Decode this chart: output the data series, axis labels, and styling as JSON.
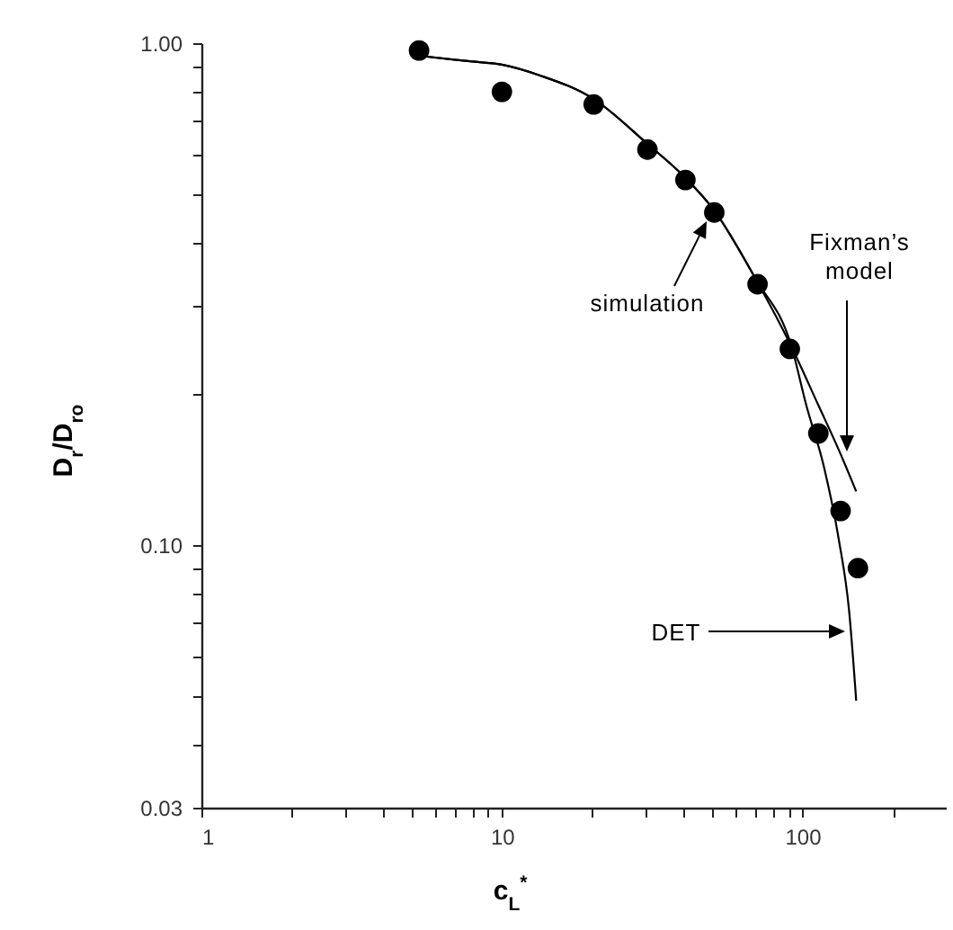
{
  "chart_data": {
    "type": "scatter",
    "xlabel": "c$_{L}$$^{*}$",
    "ylabel": "D$_{r}$/D$_{ro}$",
    "log": "xy",
    "grid": false,
    "xlim": [
      1,
      300
    ],
    "ylim": [
      0.03,
      1
    ],
    "xticks": [
      {
        "value": 1,
        "label": "1"
      },
      {
        "value": 2,
        "label": null
      },
      {
        "value": 3,
        "label": null
      },
      {
        "value": 4,
        "label": null
      },
      {
        "value": 5,
        "label": null
      },
      {
        "value": 6,
        "label": null
      },
      {
        "value": 7,
        "label": null
      },
      {
        "value": 8,
        "label": null
      },
      {
        "value": 9,
        "label": null
      },
      {
        "value": 10,
        "label": "10"
      },
      {
        "value": 20,
        "label": null
      },
      {
        "value": 30,
        "label": null
      },
      {
        "value": 40,
        "label": null
      },
      {
        "value": 50,
        "label": null
      },
      {
        "value": 60,
        "label": null
      },
      {
        "value": 70,
        "label": null
      },
      {
        "value": 80,
        "label": null
      },
      {
        "value": 90,
        "label": null
      },
      {
        "value": 100,
        "label": "100"
      },
      {
        "value": 200,
        "label": null
      }
    ],
    "yticks": [
      {
        "value": 0.03,
        "label": "0.03"
      },
      {
        "value": 0.04,
        "label": null
      },
      {
        "value": 0.05,
        "label": null
      },
      {
        "value": 0.06,
        "label": null
      },
      {
        "value": 0.07,
        "label": null
      },
      {
        "value": 0.08,
        "label": null
      },
      {
        "value": 0.09,
        "label": null
      },
      {
        "value": 0.1,
        "label": "0.10"
      },
      {
        "value": 0.2,
        "label": null
      },
      {
        "value": 0.3,
        "label": null
      },
      {
        "value": 0.4,
        "label": null
      },
      {
        "value": 0.5,
        "label": null
      },
      {
        "value": 0.6,
        "label": null
      },
      {
        "value": 0.7,
        "label": null
      },
      {
        "value": 0.8,
        "label": null
      },
      {
        "value": 0.9,
        "label": null
      },
      {
        "value": 1,
        "label": "1.00"
      }
    ],
    "series": [
      {
        "marker": "circle",
        "color": "#000000",
        "x": [
          5.3,
          10,
          20.2,
          30.5,
          40.8,
          50.9,
          70.9,
          90.8,
          113,
          134,
          153
        ],
        "values": [
          0.967,
          0.8,
          0.755,
          0.614,
          0.534,
          0.46,
          0.331,
          0.246,
          0.167,
          0.117,
          0.09
        ]
      },
      {
        "type": "line",
        "marker": "none",
        "color": "#000000",
        "x": [
          5.3,
          7.7,
          10,
          13.4,
          20.2,
          30.5,
          40.3,
          50.9,
          69.9,
          92.1,
          113,
          132,
          151
        ],
        "values": [
          0.944,
          0.921,
          0.906,
          0.862,
          0.774,
          0.63,
          0.543,
          0.464,
          0.339,
          0.248,
          0.19,
          0.155,
          0.128
        ]
      },
      {
        "type": "line",
        "marker": "none",
        "color": "#000000",
        "x": [
          5.3,
          7.7,
          10,
          13.4,
          20.2,
          30.5,
          40.3,
          50.9,
          69.9,
          92.1,
          103,
          118,
          132,
          143,
          151
        ],
        "values": [
          0.944,
          0.921,
          0.906,
          0.862,
          0.774,
          0.63,
          0.543,
          0.464,
          0.339,
          0.248,
          0.19,
          0.143,
          0.103,
          0.074,
          0.049
        ]
      }
    ],
    "annotations": [
      "simulation",
      "Fixman’s model",
      "DET"
    ]
  }
}
